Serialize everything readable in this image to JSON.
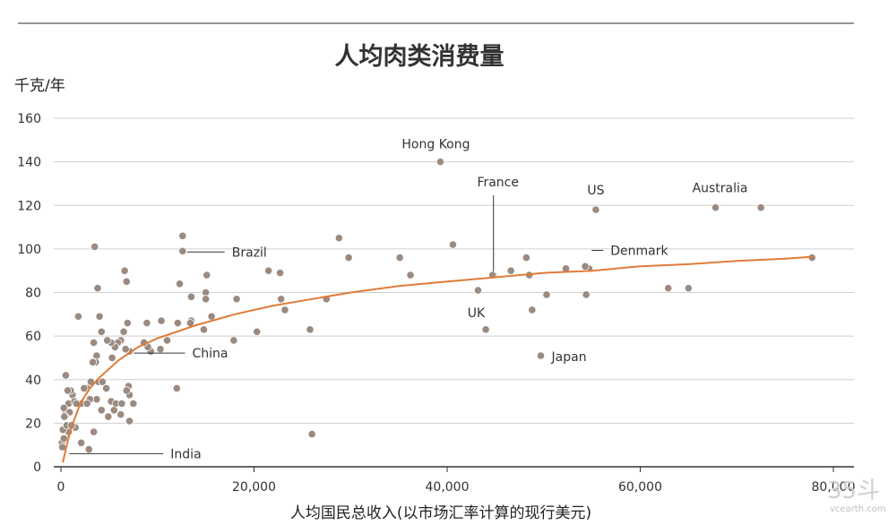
{
  "chart_data": {
    "type": "scatter",
    "title": "人均肉类消费量",
    "ylabel": "千克/年",
    "xlabel": "人均国民总收入(以市场汇率计算的现行美元)",
    "xlim": [
      0,
      82000
    ],
    "ylim": [
      0,
      160
    ],
    "x_ticks": [
      {
        "value": 0,
        "label": "0"
      },
      {
        "value": 20000,
        "label": "20,000"
      },
      {
        "value": 40000,
        "label": "40,000"
      },
      {
        "value": 60000,
        "label": "60,000"
      },
      {
        "value": 80000,
        "label": "80,000"
      }
    ],
    "y_ticks": [
      {
        "value": 0,
        "label": "0"
      },
      {
        "value": 20,
        "label": "20"
      },
      {
        "value": 40,
        "label": "40"
      },
      {
        "value": 60,
        "label": "60"
      },
      {
        "value": 80,
        "label": "80"
      },
      {
        "value": 100,
        "label": "100"
      },
      {
        "value": 120,
        "label": "120"
      },
      {
        "value": 140,
        "label": "140"
      },
      {
        "value": 160,
        "label": "160"
      }
    ],
    "grid": true,
    "colors": {
      "points": "#9a8a80",
      "trend": "#e07b39",
      "grid": "#cfcfcf",
      "axis": "#333333"
    },
    "points": [
      [
        39300,
        140
      ],
      [
        55400,
        118
      ],
      [
        67800,
        119
      ],
      [
        72500,
        119
      ],
      [
        77800,
        96
      ],
      [
        44800,
        88
      ],
      [
        44700,
        88
      ],
      [
        54700,
        91
      ],
      [
        54300,
        92
      ],
      [
        52300,
        91
      ],
      [
        48200,
        96
      ],
      [
        48500,
        88
      ],
      [
        46600,
        90
      ],
      [
        50300,
        79
      ],
      [
        54400,
        79
      ],
      [
        43200,
        81
      ],
      [
        44000,
        63
      ],
      [
        48800,
        72
      ],
      [
        49700,
        51
      ],
      [
        62900,
        82
      ],
      [
        65000,
        82
      ],
      [
        40600,
        102
      ],
      [
        35100,
        96
      ],
      [
        36200,
        88
      ],
      [
        28800,
        105
      ],
      [
        29800,
        96
      ],
      [
        27500,
        77
      ],
      [
        22700,
        89
      ],
      [
        21500,
        90
      ],
      [
        22800,
        77
      ],
      [
        23200,
        72
      ],
      [
        25800,
        63
      ],
      [
        26000,
        15
      ],
      [
        12600,
        106
      ],
      [
        12600,
        99
      ],
      [
        12300,
        84
      ],
      [
        13500,
        78
      ],
      [
        15100,
        88
      ],
      [
        15000,
        80
      ],
      [
        15000,
        77
      ],
      [
        15600,
        69
      ],
      [
        18200,
        77
      ],
      [
        17900,
        58
      ],
      [
        20300,
        62
      ],
      [
        13500,
        67
      ],
      [
        13400,
        66
      ],
      [
        14800,
        63
      ],
      [
        12100,
        66
      ],
      [
        12000,
        36
      ],
      [
        11000,
        58
      ],
      [
        10300,
        54
      ],
      [
        10400,
        67
      ],
      [
        9300,
        53
      ],
      [
        9000,
        55
      ],
      [
        8900,
        66
      ],
      [
        8600,
        57
      ],
      [
        7100,
        53
      ],
      [
        6900,
        66
      ],
      [
        6600,
        90
      ],
      [
        6800,
        85
      ],
      [
        6700,
        54
      ],
      [
        6500,
        62
      ],
      [
        6200,
        58
      ],
      [
        5900,
        57
      ],
      [
        5600,
        55
      ],
      [
        5200,
        57
      ],
      [
        4800,
        58
      ],
      [
        5300,
        50
      ],
      [
        4200,
        62
      ],
      [
        4000,
        69
      ],
      [
        3800,
        82
      ],
      [
        3500,
        101
      ],
      [
        3400,
        57
      ],
      [
        3700,
        51
      ],
      [
        3600,
        48
      ],
      [
        3300,
        48
      ],
      [
        3900,
        39
      ],
      [
        4300,
        39
      ],
      [
        4700,
        36
      ],
      [
        5200,
        30
      ],
      [
        5700,
        29
      ],
      [
        6300,
        29
      ],
      [
        7000,
        37
      ],
      [
        7100,
        33
      ],
      [
        6800,
        35
      ],
      [
        7500,
        29
      ],
      [
        7100,
        21
      ],
      [
        6200,
        24
      ],
      [
        5500,
        26
      ],
      [
        4900,
        23
      ],
      [
        4200,
        26
      ],
      [
        3700,
        31
      ],
      [
        3100,
        39
      ],
      [
        3000,
        31
      ],
      [
        2700,
        36
      ],
      [
        2400,
        36
      ],
      [
        2100,
        29
      ],
      [
        2700,
        29
      ],
      [
        1800,
        69
      ],
      [
        1200,
        33
      ],
      [
        1000,
        35
      ],
      [
        800,
        29
      ],
      [
        500,
        42
      ],
      [
        400,
        26
      ],
      [
        300,
        27
      ],
      [
        700,
        35
      ],
      [
        900,
        25
      ],
      [
        1400,
        30
      ],
      [
        1600,
        29
      ],
      [
        2100,
        11
      ],
      [
        2900,
        8
      ],
      [
        3400,
        16
      ],
      [
        1500,
        18
      ],
      [
        800,
        16
      ],
      [
        500,
        13
      ],
      [
        200,
        17
      ],
      [
        100,
        11
      ],
      [
        300,
        13
      ],
      [
        150,
        9
      ],
      [
        450,
        23
      ],
      [
        350,
        23
      ],
      [
        600,
        19
      ],
      [
        1100,
        19
      ]
    ],
    "trend": [
      [
        200,
        2
      ],
      [
        500,
        8
      ],
      [
        1000,
        17
      ],
      [
        2000,
        29
      ],
      [
        3000,
        36
      ],
      [
        4000,
        41
      ],
      [
        6000,
        49
      ],
      [
        8000,
        55
      ],
      [
        10000,
        59
      ],
      [
        14000,
        65
      ],
      [
        18000,
        70
      ],
      [
        22000,
        74
      ],
      [
        26000,
        77
      ],
      [
        30000,
        80
      ],
      [
        35000,
        83
      ],
      [
        40000,
        85
      ],
      [
        45000,
        87
      ],
      [
        50000,
        89
      ],
      [
        55000,
        90
      ],
      [
        60000,
        92
      ],
      [
        65000,
        93
      ],
      [
        70000,
        94.5
      ],
      [
        75000,
        95.5
      ],
      [
        78000,
        96.5
      ]
    ],
    "annotations": [
      {
        "text": "Hong Kong",
        "x": 39300,
        "y": 140,
        "dx": -5,
        "dy": -15,
        "anchor": "middle",
        "leader": false
      },
      {
        "text": "Australia",
        "x": 67800,
        "y": 119,
        "dx": 5,
        "dy": -17,
        "anchor": "middle",
        "leader": false
      },
      {
        "text": "US",
        "x": 55400,
        "y": 118,
        "dx": 0,
        "dy": -17,
        "anchor": "middle",
        "leader": false
      },
      {
        "text": "France",
        "x": 44800,
        "y": 88,
        "dx": 5,
        "dy": -99,
        "anchor": "middle",
        "leader": "vertical"
      },
      {
        "text": "Denmark",
        "x": 54500,
        "y": 91.5,
        "dx": 26,
        "dy": -14,
        "anchor": "start",
        "leader": "line"
      },
      {
        "text": "UK",
        "x": 43200,
        "y": 81,
        "dx": -2,
        "dy": 30,
        "anchor": "middle",
        "leader": false
      },
      {
        "text": "Japan",
        "x": 49700,
        "y": 51,
        "dx": 12,
        "dy": 6,
        "anchor": "start",
        "leader": false
      },
      {
        "text": "Brazil",
        "x": 12600,
        "y": 99,
        "dx": 55,
        "dy": 6,
        "anchor": "start",
        "leader": "line"
      },
      {
        "text": "China",
        "x": 7100,
        "y": 53,
        "dx": 70,
        "dy": 7,
        "anchor": "start",
        "leader": "line"
      },
      {
        "text": "India",
        "x": 400,
        "y": 6,
        "dx": 118,
        "dy": 5,
        "anchor": "start",
        "leader": "line"
      }
    ]
  },
  "watermark": {
    "main": "35斗",
    "sub": "vcearth.com"
  }
}
